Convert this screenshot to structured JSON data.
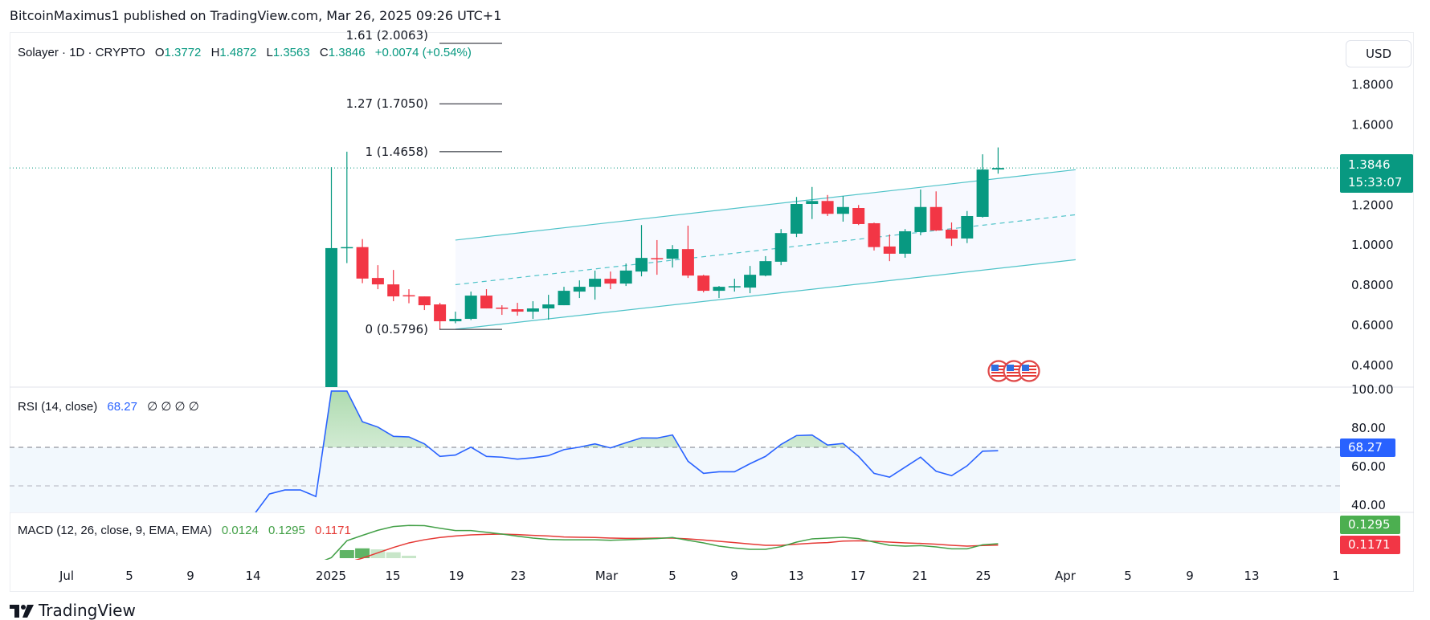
{
  "header": {
    "publisher_line": "BitcoinMaximus1 published on TradingView.com, Mar 26, 2025 09:26 UTC+1"
  },
  "legend": {
    "symbol": "Solayer · 1D · CRYPTO",
    "open_label": "O",
    "open": "1.3772",
    "high_label": "H",
    "high": "1.4872",
    "low_label": "L",
    "low": "1.3563",
    "close_label": "C",
    "close": "1.3846",
    "change": "+0.0074 (+0.54%)"
  },
  "price_axis": {
    "currency_button": "USD",
    "ticks": [
      "1.8000",
      "1.6000",
      "1.2000",
      "1.0000",
      "0.8000",
      "0.6000",
      "0.4000"
    ],
    "last_price": "1.3846",
    "countdown": "15:33:07"
  },
  "rsi": {
    "title": "RSI (14, close)",
    "value": "68.27",
    "extra": "∅ ∅ ∅ ∅",
    "ticks": [
      "100.00",
      "80.00",
      "60.00",
      "40.00"
    ],
    "tag": "68.27"
  },
  "macd": {
    "title": "MACD (12, 26, close, 9, EMA, EMA)",
    "hist_value": "0.0124",
    "macd_value": "0.1295",
    "signal_value": "0.1171",
    "tag_macd": "0.1295",
    "tag_signal": "0.1171"
  },
  "time_axis": {
    "labels": [
      "Jul",
      "5",
      "9",
      "14",
      "2025",
      "15",
      "19",
      "23",
      "Mar",
      "5",
      "9",
      "13",
      "17",
      "21",
      "25",
      "Apr",
      "5",
      "9",
      "13",
      "1"
    ]
  },
  "fib_levels": [
    {
      "label": "1.61 (2.0063)",
      "price": 2.0063
    },
    {
      "label": "1.27 (1.7050)",
      "price": 1.705
    },
    {
      "label": "1 (1.4658)",
      "price": 1.4658
    },
    {
      "label": "0 (0.5796)",
      "price": 0.5796
    }
  ],
  "events": [
    {
      "icon": "us-flag-icon"
    },
    {
      "icon": "us-flag-icon"
    },
    {
      "icon": "us-flag-icon"
    }
  ],
  "footer": {
    "brand": "TradingView"
  },
  "colors": {
    "up": "#089981",
    "down": "#f23645",
    "rsi": "#2962ff",
    "macd": "#43a047",
    "signal": "#e53935",
    "channel": "#4fc3c8"
  },
  "chart_data": {
    "type": "candlestick",
    "price_ylim": [
      0.3,
      2.0
    ],
    "candles": [
      {
        "d": "Feb 11",
        "o": 0.25,
        "h": 1.389,
        "l": 0.2,
        "c": 0.985
      },
      {
        "d": "Feb 12",
        "o": 0.985,
        "h": 1.4658,
        "l": 0.91,
        "c": 0.99
      },
      {
        "d": "Feb 13",
        "o": 0.99,
        "h": 1.03,
        "l": 0.81,
        "c": 0.833
      },
      {
        "d": "Feb 14",
        "o": 0.836,
        "h": 0.9,
        "l": 0.78,
        "c": 0.804
      },
      {
        "d": "Feb 15",
        "o": 0.804,
        "h": 0.876,
        "l": 0.72,
        "c": 0.744
      },
      {
        "d": "Feb 16",
        "o": 0.75,
        "h": 0.78,
        "l": 0.71,
        "c": 0.745
      },
      {
        "d": "Feb 17",
        "o": 0.744,
        "h": 0.744,
        "l": 0.676,
        "c": 0.7
      },
      {
        "d": "Feb 18",
        "o": 0.704,
        "h": 0.712,
        "l": 0.58,
        "c": 0.62
      },
      {
        "d": "Feb 19",
        "o": 0.62,
        "h": 0.668,
        "l": 0.61,
        "c": 0.632
      },
      {
        "d": "Feb 20",
        "o": 0.632,
        "h": 0.768,
        "l": 0.626,
        "c": 0.748
      },
      {
        "d": "Feb 21",
        "o": 0.748,
        "h": 0.78,
        "l": 0.684,
        "c": 0.684
      },
      {
        "d": "Feb 22",
        "o": 0.688,
        "h": 0.7,
        "l": 0.652,
        "c": 0.682
      },
      {
        "d": "Feb 23",
        "o": 0.68,
        "h": 0.712,
        "l": 0.648,
        "c": 0.668
      },
      {
        "d": "Feb 24",
        "o": 0.668,
        "h": 0.72,
        "l": 0.632,
        "c": 0.684
      },
      {
        "d": "Feb 25",
        "o": 0.684,
        "h": 0.752,
        "l": 0.628,
        "c": 0.704
      },
      {
        "d": "Feb 26",
        "o": 0.7,
        "h": 0.792,
        "l": 0.7,
        "c": 0.772
      },
      {
        "d": "Feb 27",
        "o": 0.768,
        "h": 0.824,
        "l": 0.736,
        "c": 0.792
      },
      {
        "d": "Feb 28",
        "o": 0.792,
        "h": 0.873,
        "l": 0.728,
        "c": 0.832
      },
      {
        "d": "Mar 1",
        "o": 0.832,
        "h": 0.868,
        "l": 0.78,
        "c": 0.808
      },
      {
        "d": "Mar 2",
        "o": 0.808,
        "h": 0.908,
        "l": 0.796,
        "c": 0.873
      },
      {
        "d": "Mar 3",
        "o": 0.868,
        "h": 1.1,
        "l": 0.844,
        "c": 0.936
      },
      {
        "d": "Mar 4",
        "o": 0.935,
        "h": 1.025,
        "l": 0.852,
        "c": 0.93
      },
      {
        "d": "Mar 5",
        "o": 0.932,
        "h": 1.0,
        "l": 0.888,
        "c": 0.98
      },
      {
        "d": "Mar 6",
        "o": 0.98,
        "h": 1.097,
        "l": 0.836,
        "c": 0.848
      },
      {
        "d": "Mar 7",
        "o": 0.848,
        "h": 0.852,
        "l": 0.764,
        "c": 0.772
      },
      {
        "d": "Mar 8",
        "o": 0.772,
        "h": 0.796,
        "l": 0.736,
        "c": 0.792
      },
      {
        "d": "Mar 9",
        "o": 0.79,
        "h": 0.832,
        "l": 0.768,
        "c": 0.795
      },
      {
        "d": "Mar 10",
        "o": 0.788,
        "h": 0.896,
        "l": 0.76,
        "c": 0.852
      },
      {
        "d": "Mar 11",
        "o": 0.848,
        "h": 0.945,
        "l": 0.844,
        "c": 0.92
      },
      {
        "d": "Mar 12",
        "o": 0.917,
        "h": 1.08,
        "l": 0.9,
        "c": 1.06
      },
      {
        "d": "Mar 13",
        "o": 1.057,
        "h": 1.24,
        "l": 1.04,
        "c": 1.205
      },
      {
        "d": "Mar 14",
        "o": 1.205,
        "h": 1.29,
        "l": 1.13,
        "c": 1.22
      },
      {
        "d": "Mar 15",
        "o": 1.22,
        "h": 1.25,
        "l": 1.145,
        "c": 1.156
      },
      {
        "d": "Mar 16",
        "o": 1.156,
        "h": 1.245,
        "l": 1.117,
        "c": 1.19
      },
      {
        "d": "Mar 17",
        "o": 1.185,
        "h": 1.2,
        "l": 1.1,
        "c": 1.105
      },
      {
        "d": "Mar 18",
        "o": 1.109,
        "h": 1.112,
        "l": 0.973,
        "c": 0.99
      },
      {
        "d": "Mar 19",
        "o": 0.993,
        "h": 1.053,
        "l": 0.92,
        "c": 0.957
      },
      {
        "d": "Mar 20",
        "o": 0.957,
        "h": 1.08,
        "l": 0.937,
        "c": 1.069
      },
      {
        "d": "Mar 21",
        "o": 1.065,
        "h": 1.277,
        "l": 1.049,
        "c": 1.19
      },
      {
        "d": "Mar 22",
        "o": 1.19,
        "h": 1.268,
        "l": 1.07,
        "c": 1.073
      },
      {
        "d": "Mar 23",
        "o": 1.077,
        "h": 1.113,
        "l": 0.996,
        "c": 1.033
      },
      {
        "d": "Mar 24",
        "o": 1.033,
        "h": 1.17,
        "l": 1.01,
        "c": 1.145
      },
      {
        "d": "Mar 25",
        "o": 1.141,
        "h": 1.453,
        "l": 1.137,
        "c": 1.377
      },
      {
        "d": "Mar 26",
        "o": 1.3772,
        "h": 1.4872,
        "l": 1.3563,
        "c": 1.3846
      }
    ],
    "channel": {
      "start": "Feb 19",
      "end": "Mar 31",
      "upper": [
        1.025,
        1.376
      ],
      "lower": [
        0.58,
        0.927
      ]
    },
    "rsi": {
      "ylim": [
        40,
        100
      ],
      "levels": [
        70,
        50
      ],
      "dates_start": "Feb 6",
      "values": [
        35,
        45.8,
        47.9,
        47.9,
        44.5,
        99.2,
        99.2,
        83.3,
        80.5,
        75.7,
        75.4,
        71.8,
        65.3,
        66,
        70.1,
        65.3,
        64.9,
        63.9,
        64.6,
        65.7,
        68.8,
        70.1,
        71.8,
        69.7,
        72.4,
        74.9,
        74.8,
        76.4,
        62.8,
        56.5,
        57.3,
        57.3,
        61.5,
        65.3,
        71.5,
        76.1,
        76.4,
        71.2,
        72,
        65.3,
        56.5,
        54.5,
        59.7,
        64.9,
        57.6,
        55.3,
        60.4,
        68,
        68.27
      ]
    },
    "macd": {
      "dates_start": "Feb 10",
      "macd": [
        -0.05,
        0.005,
        0.156,
        0.204,
        0.25,
        0.283,
        0.293,
        0.291,
        0.268,
        0.247,
        0.247,
        0.232,
        0.216,
        0.197,
        0.18,
        0.168,
        0.165,
        0.165,
        0.165,
        0.16,
        0.165,
        0.17,
        0.175,
        0.185,
        0.16,
        0.137,
        0.108,
        0.091,
        0.079,
        0.079,
        0.103,
        0.144,
        0.173,
        0.18,
        0.187,
        0.175,
        0.144,
        0.115,
        0.108,
        0.112,
        0.101,
        0.084,
        0.084,
        0.12,
        0.1295
      ],
      "signal": [
        -0.1,
        -0.08,
        -0.04,
        0.0,
        0.048,
        0.096,
        0.137,
        0.165,
        0.185,
        0.199,
        0.209,
        0.213,
        0.216,
        0.211,
        0.204,
        0.199,
        0.19,
        0.187,
        0.185,
        0.18,
        0.177,
        0.177,
        0.18,
        0.18,
        0.173,
        0.163,
        0.151,
        0.139,
        0.127,
        0.115,
        0.115,
        0.125,
        0.134,
        0.139,
        0.153,
        0.156,
        0.151,
        0.144,
        0.137,
        0.132,
        0.125,
        0.115,
        0.108,
        0.113,
        0.1171
      ],
      "histogram": [
        {
          "d": "Feb 12",
          "v": 0.072,
          "strong": true
        },
        {
          "d": "Feb 13",
          "v": 0.088,
          "strong": true
        },
        {
          "d": "Feb 14",
          "v": 0.079,
          "strong": false
        },
        {
          "d": "Feb 15",
          "v": 0.053,
          "strong": false
        },
        {
          "d": "Feb 16",
          "v": 0.022,
          "strong": false
        }
      ]
    }
  }
}
